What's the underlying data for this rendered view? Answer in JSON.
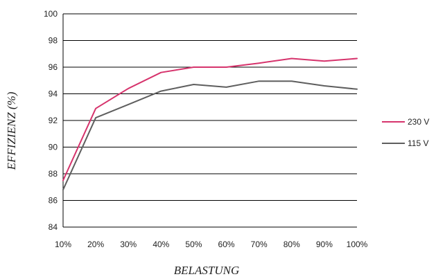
{
  "chart_data": {
    "type": "line",
    "title": "",
    "xlabel": "BELASTUNG",
    "ylabel": "EFFIZIENZ (%)",
    "categories": [
      "10%",
      "20%",
      "30%",
      "40%",
      "50%",
      "60%",
      "70%",
      "80%",
      "90%",
      "100%"
    ],
    "yticks": [
      "84",
      "86",
      "88",
      "90",
      "92",
      "94",
      "96",
      "98",
      "100"
    ],
    "ylim": [
      84,
      100
    ],
    "grid": true,
    "legend_position": "right",
    "series": [
      {
        "name": "230 V",
        "color": "#d6336c",
        "values": [
          87.5,
          92.9,
          94.4,
          95.6,
          96.0,
          96.0,
          96.3,
          96.65,
          96.45,
          96.65
        ]
      },
      {
        "name": "115 V",
        "color": "#5e5e5e",
        "values": [
          86.8,
          92.2,
          93.2,
          94.2,
          94.7,
          94.5,
          94.95,
          94.95,
          94.6,
          94.35
        ]
      }
    ]
  }
}
